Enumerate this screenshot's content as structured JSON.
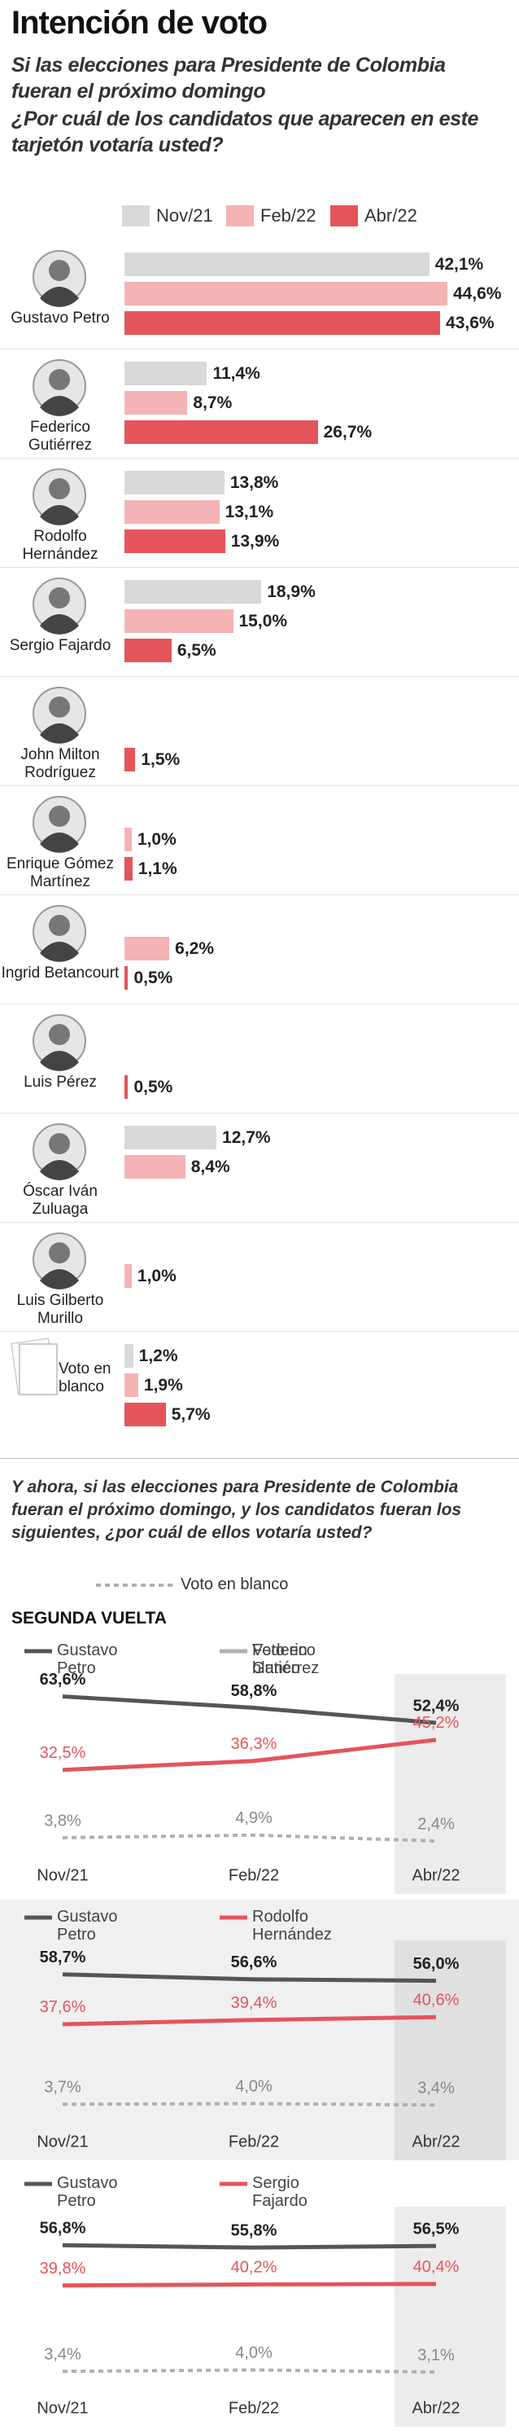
{
  "chart_data": [
    {
      "type": "bar",
      "orientation": "horizontal",
      "title": "Intención de voto",
      "subtitle": "Si las elecciones para Presidente de Colombia fueran el próximo domingo",
      "question": "¿Por cuál de los candidatos que aparecen en este tarjetón votaría usted?",
      "categories": [
        "Gustavo Petro",
        "Federico Gutiérrez",
        "Rodolfo Hernández",
        "Sergio Fajardo",
        "John Milton Rodríguez",
        "Enrique Gómez Martínez",
        "Ingrid Betancourt",
        "Luis Pérez",
        "Óscar Iván Zuluaga",
        "Luis Gilberto Murillo",
        "Voto en blanco"
      ],
      "series": [
        {
          "name": "Nov/21",
          "color": "#d9d9d9",
          "values": [
            42.1,
            11.4,
            13.8,
            18.9,
            null,
            null,
            null,
            null,
            12.7,
            null,
            1.2
          ],
          "value_labels": [
            "42,1%",
            "11,4%",
            "13,8%",
            "18,9%",
            null,
            null,
            null,
            null,
            "12,7%",
            null,
            "1,2%"
          ]
        },
        {
          "name": "Feb/22",
          "color": "#f4b3b5",
          "values": [
            44.6,
            8.7,
            13.1,
            15.0,
            null,
            1.0,
            6.2,
            null,
            8.4,
            1.0,
            1.9
          ],
          "value_labels": [
            "44,6%",
            "8,7%",
            "13,1%",
            "15,0%",
            null,
            "1,0%",
            "6,2%",
            null,
            "8,4%",
            "1,0%",
            "1,9%"
          ]
        },
        {
          "name": "Abr/22",
          "color": "#e5545a",
          "values": [
            43.6,
            26.7,
            13.9,
            6.5,
            1.5,
            1.1,
            0.5,
            0.5,
            null,
            null,
            5.7
          ],
          "value_labels": [
            "43,6%",
            "26,7%",
            "13,9%",
            "6,5%",
            "1,5%",
            "1,1%",
            "0,5%",
            "0,5%",
            null,
            null,
            "5,7%"
          ]
        }
      ]
    },
    {
      "type": "line",
      "x": [
        "Nov/21",
        "Feb/22",
        "Abr/22"
      ],
      "series": [
        {
          "name": "Gustavo Petro",
          "color": "#555555",
          "values": [
            63.6,
            58.8,
            52.4
          ],
          "value_labels": [
            "63,6%",
            "58,8%",
            "52,4%"
          ]
        },
        {
          "name": "Federico Gutiérrez",
          "color": "#e5545a",
          "values": [
            32.5,
            36.3,
            45.2
          ],
          "value_labels": [
            "32,5%",
            "36,3%",
            "45,2%"
          ]
        },
        {
          "name": "Voto en blanco",
          "color": "#b0b0b0",
          "dashed": true,
          "values": [
            3.8,
            4.9,
            2.4
          ],
          "value_labels": [
            "3,8%",
            "4,9%",
            "2,4%"
          ]
        }
      ]
    },
    {
      "type": "line",
      "x": [
        "Nov/21",
        "Feb/22",
        "Abr/22"
      ],
      "series": [
        {
          "name": "Gustavo Petro",
          "color": "#555555",
          "values": [
            58.7,
            56.6,
            56.0
          ],
          "value_labels": [
            "58,7%",
            "56,6%",
            "56,0%"
          ]
        },
        {
          "name": "Rodolfo Hernández",
          "color": "#e5545a",
          "values": [
            37.6,
            39.4,
            40.6
          ],
          "value_labels": [
            "37,6%",
            "39,4%",
            "40,6%"
          ]
        },
        {
          "color": "#b0b0b0",
          "dashed": true,
          "values": [
            3.7,
            4.0,
            3.4
          ],
          "value_labels": [
            "3,7%",
            "4,0%",
            "3,4%"
          ]
        }
      ]
    },
    {
      "type": "line",
      "x": [
        "Nov/21",
        "Feb/22",
        "Abr/22"
      ],
      "series": [
        {
          "name": "Gustavo Petro",
          "color": "#555555",
          "values": [
            56.8,
            55.8,
            56.5
          ],
          "value_labels": [
            "56,8%",
            "55,8%",
            "56,5%"
          ]
        },
        {
          "name": "Sergio Fajardo",
          "color": "#e5545a",
          "values": [
            39.8,
            40.2,
            40.4
          ],
          "value_labels": [
            "39,8%",
            "40,2%",
            "40,4%"
          ]
        },
        {
          "color": "#b0b0b0",
          "dashed": true,
          "values": [
            3.4,
            4.0,
            3.1
          ],
          "value_labels": [
            "3,4%",
            "4,0%",
            "3,1%"
          ]
        }
      ]
    }
  ],
  "section": {
    "question": "Y ahora, si las elecciones para Presidente de Colombia fueran el próximo domingo, y los candidatos fueran los siguientes, ¿por cuál de ellos votaría usted?",
    "label": "SEGUNDA VUELTA"
  }
}
